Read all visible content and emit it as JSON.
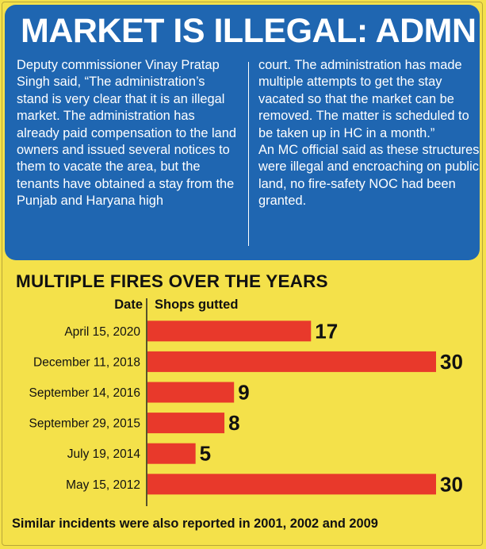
{
  "headline": "MARKET IS ILLEGAL: ADMN",
  "body_left": "Deputy commissioner Vinay Pratap Singh said, “The administration’s stand is very clear that it is an illegal market. The administration has already paid compensation to the land owners and issued several notices to them to vacate the area, but the tenants have obtained a stay from the Punjab and Haryana high",
  "body_right_1": "court. The administration has made multiple attempts to get the stay vacated so that the market can be removed. The matter is scheduled to be taken up in HC in a month.”",
  "body_right_2": "An MC official said as these structures were illegal and encroaching on public land, no fire-safety NOC had been granted.",
  "footnote": "Similar incidents were also reported in 2001, 2002 and 2009",
  "colors": {
    "background": "#f4e14a",
    "blue_box": "#1f66b1",
    "bar": "#e8392b",
    "text": "#111111"
  },
  "chart_data": {
    "type": "bar",
    "orientation": "horizontal",
    "title": "MULTIPLE FIRES OVER THE YEARS",
    "xlabel": "Shops gutted",
    "ylabel": "Date",
    "categories": [
      "April 15, 2020",
      "December 11, 2018",
      "September 14, 2016",
      "September 29, 2015",
      "July 19, 2014",
      "May 15, 2012"
    ],
    "values": [
      17,
      30,
      9,
      8,
      5,
      30
    ],
    "xlim": [
      0,
      30
    ],
    "grid": false,
    "legend": "none",
    "data_labels": true
  }
}
